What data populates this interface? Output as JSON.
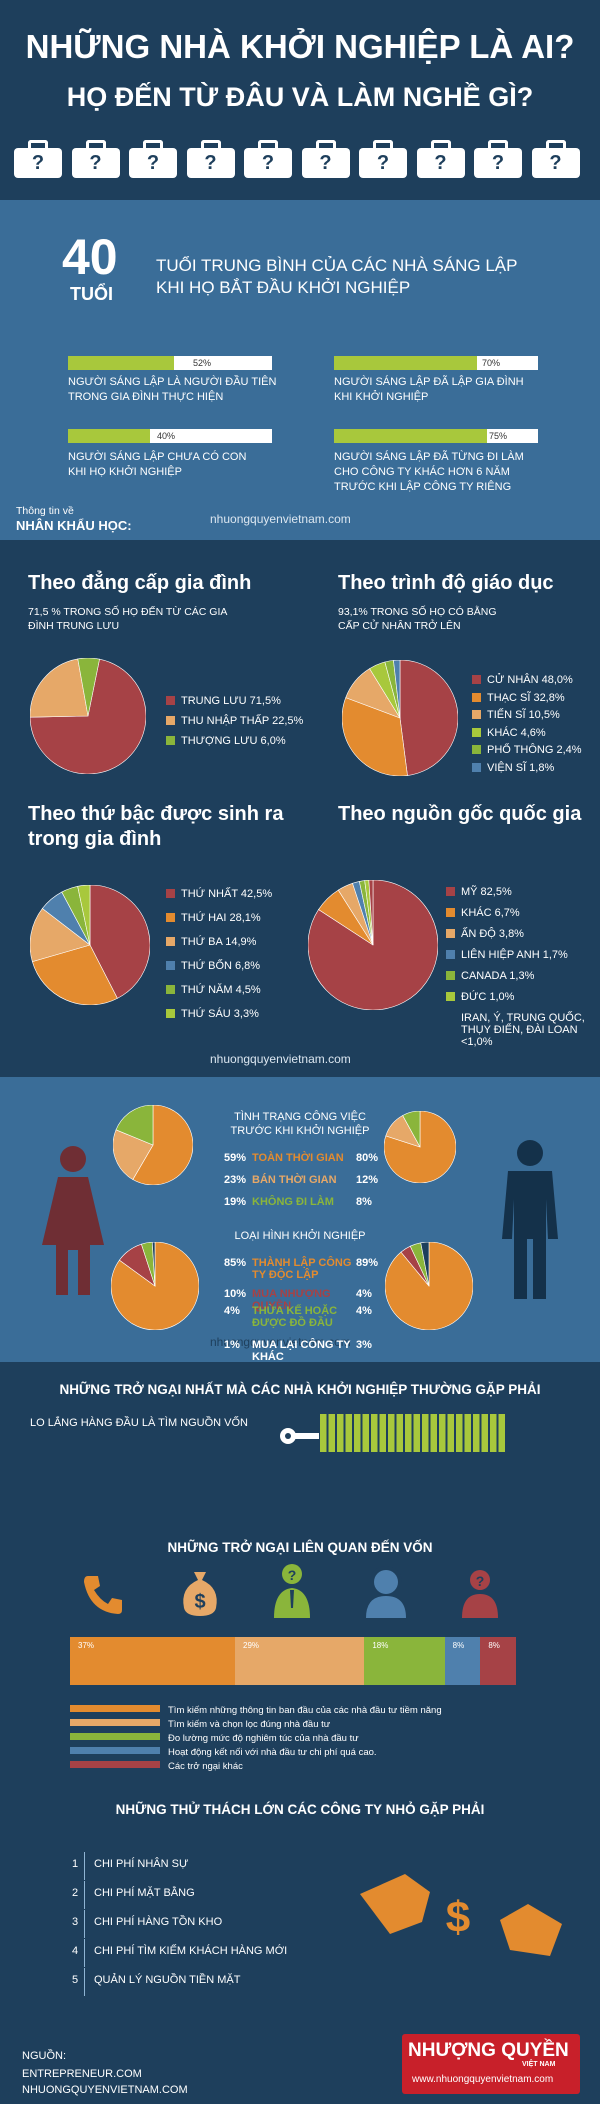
{
  "header": {
    "title1": "NHỮNG NHÀ KHỞI NGHIỆP LÀ AI?",
    "title2": "HỌ ĐẾN TỪ ĐÂU VÀ LÀM NGHỀ GÌ?",
    "bag_mark": "?"
  },
  "age": {
    "number": "40",
    "unit": "TUỔI",
    "desc1": "TUỔI TRUNG BÌNH CỦA CÁC NHÀ SÁNG LẬP",
    "desc2": "KHI HỌ BẮT ĐẦU KHỞI NGHIỆP"
  },
  "stats": [
    {
      "pct_label": "52%",
      "value": 52,
      "line1": "NGƯỜI SÁNG LẬP LÀ NGƯỜI ĐẦU TIÊN",
      "line2": "TRONG GIA ĐÌNH THỰC HIỆN",
      "line3": ""
    },
    {
      "pct_label": "70%",
      "value": 70,
      "line1": "NGƯỜI SÁNG LẬP ĐÃ LẬP GIA ĐÌNH",
      "line2": "KHI KHỞI NGHIỆP",
      "line3": ""
    },
    {
      "pct_label": "40%",
      "value": 40,
      "line1": "NGƯỜI SÁNG LẬP CHƯA CÓ CON",
      "line2": "KHI HỌ KHỞI NGHIỆP",
      "line3": ""
    },
    {
      "pct_label": "75%",
      "value": 75,
      "line1": "NGƯỜI SÁNG LẬP ĐÃ TỪNG ĐI LÀM",
      "line2": "CHO CÔNG TY KHÁC HƠN 6 NĂM",
      "line3": "TRƯỚC KHI LẬP CÔNG TY RIÊNG"
    }
  ],
  "demo": {
    "label1": "Thông tin về",
    "label2": "NHÂN KHẨU HỌC:"
  },
  "watermark": "nhuongquyenvietnam.com",
  "colors": {
    "red": "#a64246",
    "orange": "#e38b2f",
    "tan": "#e6a868",
    "green": "#8ab53b",
    "blue": "#4f80ad",
    "lime": "#a8c83c",
    "navy": "#1e3f5c"
  },
  "chart_data": [
    {
      "type": "pie",
      "title": "Theo đẳng cấp gia đình",
      "subtitle": "71,5 % TRONG SỐ HỌ ĐẾN TỪ CÁC GIA ĐÌNH TRUNG LƯU",
      "series": [
        {
          "label": "TRUNG LƯU 71,5%",
          "value": 71.5,
          "color": "#a64246"
        },
        {
          "label": "THU NHẬP THẤP 22,5%",
          "value": 22.5,
          "color": "#e6a868"
        },
        {
          "label": "THƯỢNG LƯU 6,0%",
          "value": 6.0,
          "color": "#8ab53b"
        }
      ]
    },
    {
      "type": "pie",
      "title": "Theo trình độ giáo dục",
      "subtitle": "93,1% TRONG SỐ HỌ CÓ BẰNG CẤP CỬ NHÂN TRỞ LÊN",
      "series": [
        {
          "label": "CỬ NHÂN 48,0%",
          "value": 48.0,
          "color": "#a64246"
        },
        {
          "label": "THẠC SĨ 32,8%",
          "value": 32.8,
          "color": "#e38b2f"
        },
        {
          "label": "TIẾN SĨ 10,5%",
          "value": 10.5,
          "color": "#e6a868"
        },
        {
          "label": "KHÁC 4,6%",
          "value": 4.6,
          "color": "#a8c83c"
        },
        {
          "label": "PHỔ THÔNG 2,4%",
          "value": 2.4,
          "color": "#8ab53b"
        },
        {
          "label": "VIỆN SĨ 1,8%",
          "value": 1.8,
          "color": "#4f80ad"
        }
      ]
    },
    {
      "type": "pie",
      "title1": "Theo thứ bậc được sinh ra",
      "title2": "trong gia đình",
      "series": [
        {
          "label": "THỨ NHẤT 42,5%",
          "value": 42.5,
          "color": "#a64246"
        },
        {
          "label": "THỨ HAI 28,1%",
          "value": 28.1,
          "color": "#e38b2f"
        },
        {
          "label": "THỨ BA 14,9%",
          "value": 14.9,
          "color": "#e6a868"
        },
        {
          "label": "THỨ BỐN 6,8%",
          "value": 6.8,
          "color": "#4f80ad"
        },
        {
          "label": "THỨ NĂM 4,5%",
          "value": 4.5,
          "color": "#8ab53b"
        },
        {
          "label": "THỨ SÁU 3,3%",
          "value": 3.3,
          "color": "#a8c83c"
        }
      ]
    },
    {
      "type": "pie",
      "title": "Theo nguồn gốc quốc gia",
      "series": [
        {
          "label": "MỸ 82,5%",
          "value": 82.5,
          "color": "#a64246"
        },
        {
          "label": "KHÁC 6,7%",
          "value": 6.7,
          "color": "#e38b2f"
        },
        {
          "label": "ẤN ĐỘ 3,8%",
          "value": 3.8,
          "color": "#e6a868"
        },
        {
          "label": "LIÊN HIỆP ANH 1,7%",
          "value": 1.7,
          "color": "#4f80ad"
        },
        {
          "label": "CANADA 1,3%",
          "value": 1.3,
          "color": "#8ab53b"
        },
        {
          "label": "ĐỨC 1,0%",
          "value": 1.0,
          "color": "#a8c83c"
        },
        {
          "label": "IRAN, Ý, TRUNG QUỐC, THỤY ĐIỂN, ĐÀI LOAN <1,0%",
          "value": 1.0,
          "color": "#a64246"
        }
      ]
    },
    {
      "type": "pie",
      "title1": "TÌNH TRẠNG CÔNG VIỆC",
      "title2": "TRƯỚC KHI KHỞI NGHIỆP",
      "rows": [
        {
          "label": "TOÀN THỜI GIAN",
          "female": 59,
          "male": 80,
          "color": "#e38b2f"
        },
        {
          "label": "BÁN THỜI GIAN",
          "female": 23,
          "male": 12,
          "color": "#e6a868"
        },
        {
          "label": "KHÔNG ĐI LÀM",
          "female": 19,
          "male": 8,
          "color": "#8ab53b"
        }
      ],
      "female_labels": [
        "59%",
        "23%",
        "19%"
      ],
      "male_labels": [
        "80%",
        "12%",
        "8%"
      ]
    },
    {
      "type": "pie",
      "title": "LOẠI HÌNH KHỞI NGHIỆP",
      "rows": [
        {
          "label": "THÀNH LẬP CÔNG TY ĐỘC LẬP",
          "female": 85,
          "male": 89,
          "color": "#e38b2f"
        },
        {
          "label": "MUA NHƯỢNG QUYỀN",
          "female": 10,
          "male": 4,
          "color": "#a64246"
        },
        {
          "label": "THỪA KẾ HOẶC ĐƯỢC ĐỒ ĐẦU",
          "female": 4,
          "male": 4,
          "color": "#8ab53b"
        },
        {
          "label": "MUA LẠI CÔNG TY KHÁC",
          "female": 1,
          "male": 3,
          "color": "#1e3f5c"
        }
      ],
      "female_labels": [
        "85%",
        "10%",
        "4%",
        "1%"
      ],
      "male_labels": [
        "89%",
        "4%",
        "4%",
        "3%"
      ]
    },
    {
      "type": "bar",
      "title": "NHỮNG TRỞ NGẠI LIÊN QUAN ĐẾN VỐN",
      "stacked": true,
      "series": [
        {
          "name": "Tìm kiếm những thông tin ban đầu của các nhà đầu tư tiềm năng",
          "value": 37,
          "label": "37%",
          "color": "#e38b2f"
        },
        {
          "name": "Tìm kiếm và chọn lọc đúng nhà đầu tư",
          "value": 29,
          "label": "29%",
          "color": "#e6a868"
        },
        {
          "name": "Đo lường mức độ nghiêm túc của nhà đầu tư",
          "value": 18,
          "label": "18%",
          "color": "#8ab53b"
        },
        {
          "name": "Hoạt động kết nối với nhà đầu tư chi phí quá cao.",
          "value": 8,
          "label": "8%",
          "color": "#4f80ad"
        },
        {
          "name": "Các trở ngại khác",
          "value": 8,
          "label": "8%",
          "color": "#a64246"
        }
      ]
    }
  ],
  "obstacles": {
    "title": "NHỮNG TRỞ NGẠI  NHẤT MÀ CÁC NHÀ KHỞI NGHIỆP THƯỜNG GẶP PHẢI",
    "worry": "LO LẮNG HÀNG ĐẦU LÀ TÌM NGUỒN VỐN"
  },
  "challenges": {
    "title": "NHỮNG THỬ THÁCH LỚN CÁC CÔNG TY NHỎ GẶP PHẢI",
    "items": [
      {
        "n": "1",
        "text": "CHI PHÍ NHÂN SỰ"
      },
      {
        "n": "2",
        "text": "CHI PHÍ MẶT BẰNG"
      },
      {
        "n": "3",
        "text": "CHI PHÍ HÀNG TỒN KHO"
      },
      {
        "n": "4",
        "text": "CHI PHÍ TÌM KIẾM KHÁCH HÀNG MỚI"
      },
      {
        "n": "5",
        "text": "QUẢN LÝ NGUỒN TIỀN MẶT"
      }
    ]
  },
  "footer": {
    "source_label": "NGUỒN:",
    "src1": "ENTREPRENEUR.COM",
    "src2": "NHUONGQUYENVIETNAM.COM",
    "brand1": "NHƯỢNG QUYỀN",
    "brand2": "VIỆT NAM",
    "brand_url": "www.nhuongquyenvietnam.com"
  }
}
